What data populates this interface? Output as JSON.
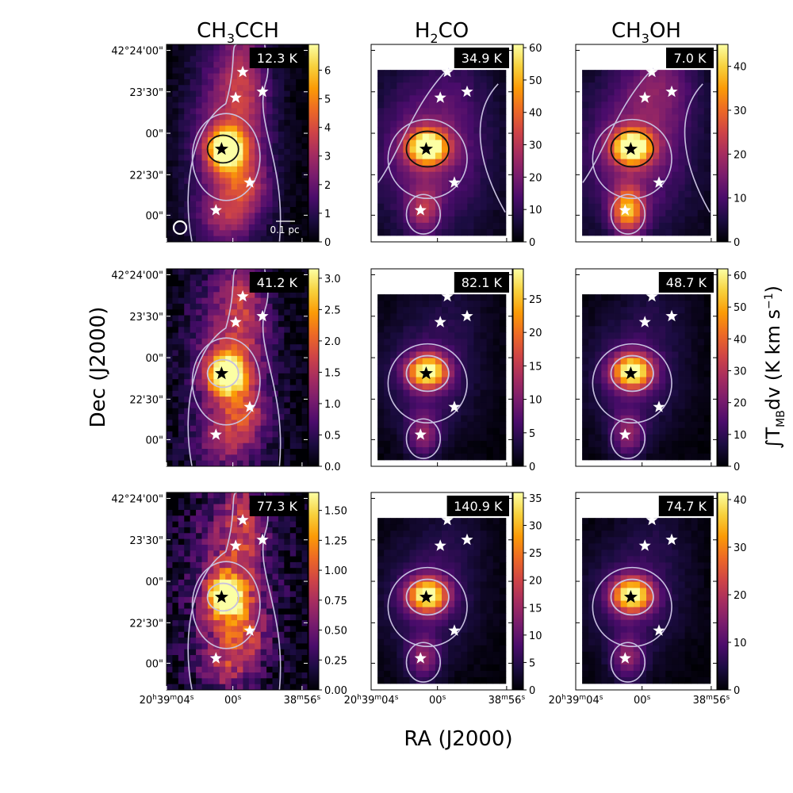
{
  "figure": {
    "xlabel": "RA (J2000)",
    "ylabel": "Dec (J2000)",
    "cbar_label": "∫T",
    "cbar_label_sub": "MB",
    "cbar_label_rest": "dv (K km s",
    "cbar_label_sup": "−1",
    "cbar_label_end": ")",
    "colormap": [
      "#000004",
      "#1b0c41",
      "#4a0c6b",
      "#781c6d",
      "#a52c60",
      "#cf4446",
      "#ed6925",
      "#fb9b06",
      "#f7d13d",
      "#fcffa4"
    ],
    "scalebar_label": "0.1 pc",
    "star_color_main": "#000000",
    "star_color_other": "#ffffff",
    "contour_color": "#c8c0e0",
    "contour_dark": "#111111"
  },
  "col_titles": [
    {
      "main": "CH",
      "sub1": "3",
      "mid": "CCH",
      "sub2": "",
      "end": ""
    },
    {
      "main": "H",
      "sub1": "2",
      "mid": "CO",
      "sub2": "",
      "end": ""
    },
    {
      "main": "CH",
      "sub1": "3",
      "mid": "OH",
      "sub2": "",
      "end": ""
    }
  ],
  "y_ticks": [
    "42°24'00\"",
    "23'30\"",
    "00\"",
    "22'30\"",
    "00\""
  ],
  "x_ticks": [
    {
      "h": "20",
      "hu": "h",
      "m": "39",
      "mu": "m",
      "s": "04",
      "su": "s"
    },
    {
      "h": "",
      "hu": "",
      "m": "",
      "mu": "",
      "s": "00",
      "su": "s"
    },
    {
      "h": "",
      "hu": "",
      "m": "38",
      "mu": "m",
      "s": "56",
      "su": "s"
    }
  ],
  "chart_data": [
    {
      "type": "heatmap",
      "molecule": "CH3CCH",
      "row": 0,
      "col": 0,
      "temperature": "12.3 K",
      "cbar_ticks": [
        "0",
        "1",
        "2",
        "3",
        "4",
        "5",
        "6"
      ],
      "cbar_max": 6.9,
      "peak": 6.5
    },
    {
      "type": "heatmap",
      "molecule": "H2CO",
      "row": 0,
      "col": 1,
      "temperature": "34.9 K",
      "cbar_ticks": [
        "0",
        "10",
        "20",
        "30",
        "40",
        "50",
        "60"
      ],
      "cbar_max": 61,
      "peak": 58
    },
    {
      "type": "heatmap",
      "molecule": "CH3OH",
      "row": 0,
      "col": 2,
      "temperature": "7.0 K",
      "cbar_ticks": [
        "0",
        "10",
        "20",
        "30",
        "40"
      ],
      "cbar_max": 45,
      "peak": 42
    },
    {
      "type": "heatmap",
      "molecule": "CH3CCH",
      "row": 1,
      "col": 0,
      "temperature": "41.2 K",
      "cbar_ticks": [
        "0.0",
        "0.5",
        "1.0",
        "1.5",
        "2.0",
        "2.5",
        "3.0"
      ],
      "cbar_max": 3.15,
      "peak": 2.9
    },
    {
      "type": "heatmap",
      "molecule": "H2CO",
      "row": 1,
      "col": 1,
      "temperature": "82.1 K",
      "cbar_ticks": [
        "0",
        "5",
        "10",
        "15",
        "20",
        "25"
      ],
      "cbar_max": 29.5,
      "peak": 27
    },
    {
      "type": "heatmap",
      "molecule": "CH3OH",
      "row": 1,
      "col": 2,
      "temperature": "48.7 K",
      "cbar_ticks": [
        "0",
        "10",
        "20",
        "30",
        "40",
        "50",
        "60"
      ],
      "cbar_max": 62,
      "peak": 58
    },
    {
      "type": "heatmap",
      "molecule": "CH3CCH",
      "row": 2,
      "col": 0,
      "temperature": "77.3 K",
      "cbar_ticks": [
        "0.00",
        "0.25",
        "0.50",
        "0.75",
        "1.00",
        "1.25",
        "1.50"
      ],
      "cbar_max": 1.65,
      "peak": 1.5
    },
    {
      "type": "heatmap",
      "molecule": "H2CO",
      "row": 2,
      "col": 1,
      "temperature": "140.9 K",
      "cbar_ticks": [
        "0",
        "5",
        "10",
        "15",
        "20",
        "25",
        "30",
        "35"
      ],
      "cbar_max": 36,
      "peak": 33
    },
    {
      "type": "heatmap",
      "molecule": "CH3OH",
      "row": 2,
      "col": 2,
      "temperature": "74.7 K",
      "cbar_ticks": [
        "0",
        "10",
        "20",
        "30",
        "40"
      ],
      "cbar_max": 41.5,
      "peak": 38
    }
  ]
}
